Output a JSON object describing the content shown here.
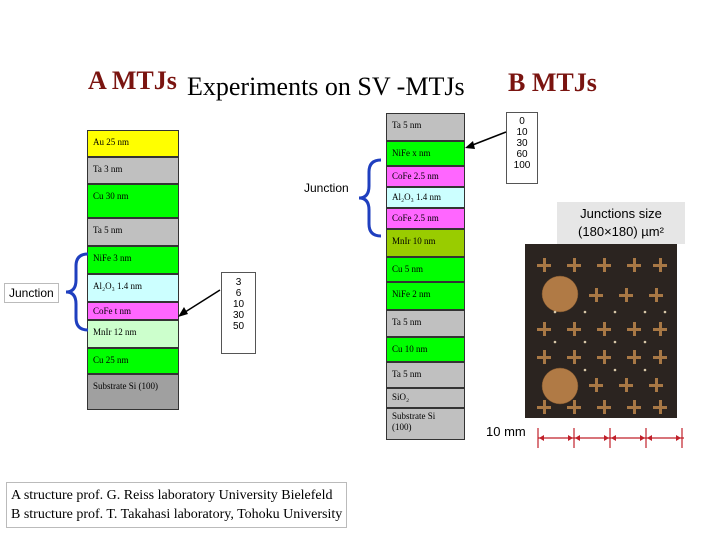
{
  "title": {
    "a_label": "A MTJs",
    "main": "Experiments on SV -MTJs",
    "b_label": "B MTJs"
  },
  "structure_a": {
    "top_layers": [
      {
        "text": "Au  25 nm",
        "color": "#ffff00"
      },
      {
        "text": "Ta  3 nm",
        "color": "#c0c0c0"
      },
      {
        "text": "Cu  30 nm",
        "color": "#00ff00"
      },
      {
        "text": "Ta  5 nm",
        "color": "#c0c0c0"
      },
      {
        "text": "NiFe  3 nm",
        "color": "#00ff00"
      }
    ],
    "junction_layers": [
      {
        "text": "Al₂O₃ 1.4 nm",
        "color": "#ccffff"
      },
      {
        "text": "CoFe  t nm",
        "color": "#ff66ff"
      },
      {
        "text": "MnIr  12 nm",
        "color": "#ccffcc"
      }
    ],
    "bottom_layers": [
      {
        "text": "Cu  25 nm",
        "color": "#00ff00"
      },
      {
        "text": "Substrate Si (100)",
        "color": "#a0a0a0"
      }
    ],
    "junction_label": "Junction",
    "thickness_values": [
      "3",
      "6",
      "10",
      "30",
      "50"
    ]
  },
  "structure_b": {
    "layers": [
      {
        "text": "Ta  5 nm",
        "color": "#c0c0c0"
      },
      {
        "text": "NiFe  x nm",
        "color": "#00ff00"
      },
      {
        "text": "CoFe  2.5 nm",
        "color": "#ff66ff"
      },
      {
        "text": "Al₂O₃ 1.4 nm",
        "color": "#ccffff"
      },
      {
        "text": "CoFe  2.5 nm",
        "color": "#ff66ff"
      },
      {
        "text": "MnIr  10 nm",
        "color": "#99cc00"
      },
      {
        "text": "Cu  5 nm",
        "color": "#00ff00"
      },
      {
        "text": "NiFe  2 nm",
        "color": "#00ff00"
      },
      {
        "text": "Ta  5 nm",
        "color": "#c0c0c0"
      },
      {
        "text": "Cu  10 nm",
        "color": "#00ff00"
      },
      {
        "text": "Ta  5 nm",
        "color": "#c0c0c0"
      },
      {
        "text": "SiO₂",
        "color": "#c0c0c0"
      },
      {
        "text": "Substrate Si\n(100)",
        "color": "#c0c0c0"
      }
    ],
    "junction_label": "Junction",
    "thickness_values": [
      "0",
      "10",
      "30",
      "60",
      "100"
    ]
  },
  "junction_size": {
    "line1": "Junctions size",
    "line2": "(180×180) µm²"
  },
  "scale_label": "10 mm",
  "caption": {
    "line1": "A  structure  prof. G. Reiss laboratory University Bielefeld",
    "line2": "B structure  prof. T. Takahasi  laboratory, Tohoku University"
  }
}
